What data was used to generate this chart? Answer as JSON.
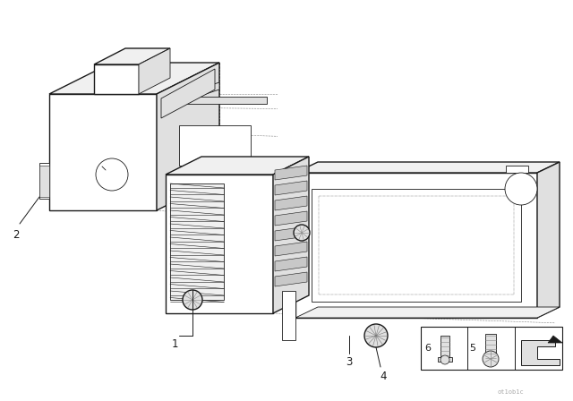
{
  "bg_color": "#ffffff",
  "lc": "#1a1a1a",
  "fill_white": "#ffffff",
  "fill_light": "#f0f0f0",
  "fill_mid": "#e0e0e0",
  "fill_dark": "#c8c8c8",
  "watermark": "ot1ob1c",
  "lw_main": 1.0,
  "lw_thin": 0.6,
  "lw_dot": 0.5
}
